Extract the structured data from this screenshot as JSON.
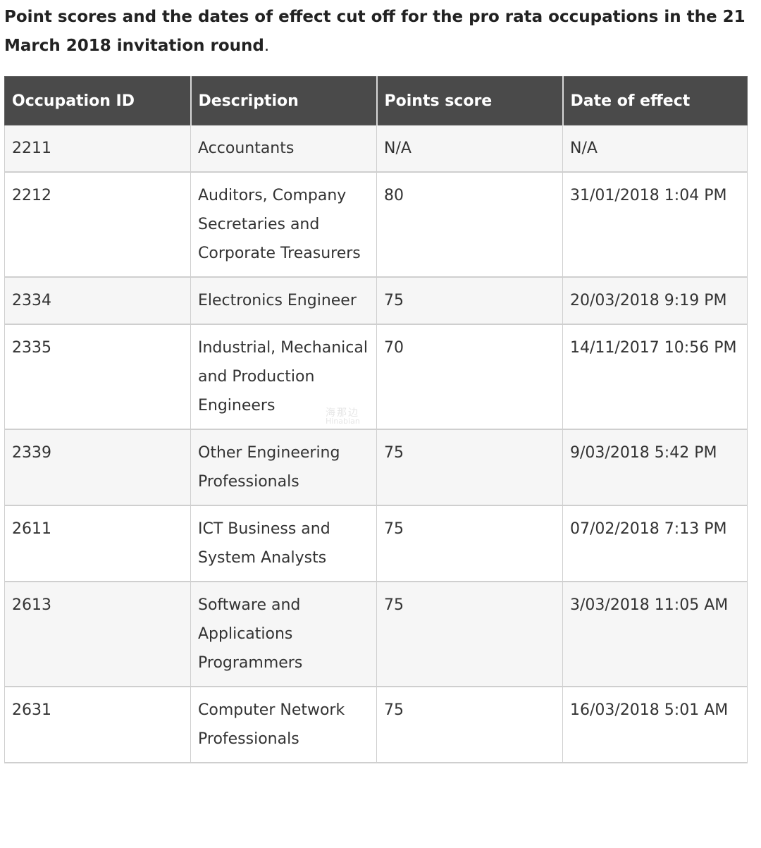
{
  "heading": {
    "bold_text": "Point scores and the dates of effect cut off for the pro rata occupations in the 21 March 2018 invitation round",
    "trailing": "."
  },
  "table": {
    "headers": [
      "Occupation ID",
      "Description",
      "Points score",
      "Date of effect"
    ],
    "rows": [
      [
        "2211",
        "Accountants",
        "N/A",
        "N/A"
      ],
      [
        "2212",
        "Auditors, Company Secretaries and Corporate Treasurers",
        "80",
        "31/01/2018  1:04 PM"
      ],
      [
        "2334",
        "Electronics Engineer",
        "75",
        "20/03/2018  9:19 PM"
      ],
      [
        "2335",
        "Industrial, Mechanical and Production Engineers",
        "70",
        "14/11/2017  10:56 PM"
      ],
      [
        "2339",
        "Other Engineering Professionals",
        "75",
        "9/03/2018  5:42 PM"
      ],
      [
        "2611",
        "ICT Business and System Analysts",
        "75",
        "07/02/2018 7:13 PM"
      ],
      [
        "2613",
        "Software and Applications Programmers",
        "75",
        "3/03/2018  11:05 AM"
      ],
      [
        "2631",
        "Computer Network Professionals",
        "75",
        "16/03/2018  5:01 AM"
      ]
    ]
  },
  "watermark": {
    "line1": "海那边",
    "line2": "Hinabian"
  }
}
